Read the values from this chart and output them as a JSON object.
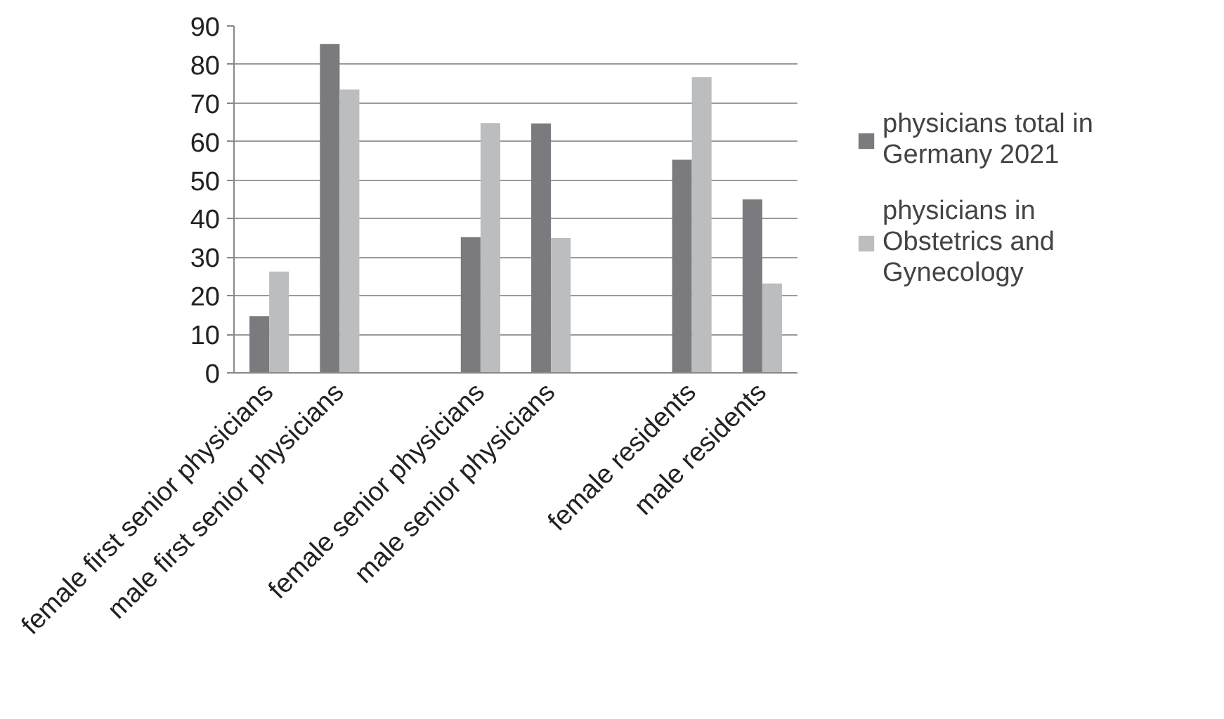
{
  "chart_data": {
    "type": "bar",
    "categories": [
      "female first senior physicians",
      "male first senior physicians",
      null,
      "female senior physicians",
      "male senior physicians",
      null,
      "female residents",
      "male residents"
    ],
    "series": [
      {
        "name": "physicians total in Germany 2021",
        "color": "#7b7b7f",
        "values": [
          14.7,
          85.3,
          null,
          35.2,
          64.7,
          null,
          55.3,
          45.0
        ]
      },
      {
        "name": "physicians in Obstetrics and Gynecology",
        "color": "#bcbdbf",
        "values": [
          26.3,
          73.5,
          null,
          64.8,
          35.0,
          null,
          76.7,
          23.2
        ]
      }
    ],
    "ylim": [
      0,
      90
    ],
    "yticks": [
      0,
      10,
      20,
      30,
      40,
      50,
      60,
      70,
      80,
      90
    ],
    "grid": "y",
    "legend": "right"
  }
}
